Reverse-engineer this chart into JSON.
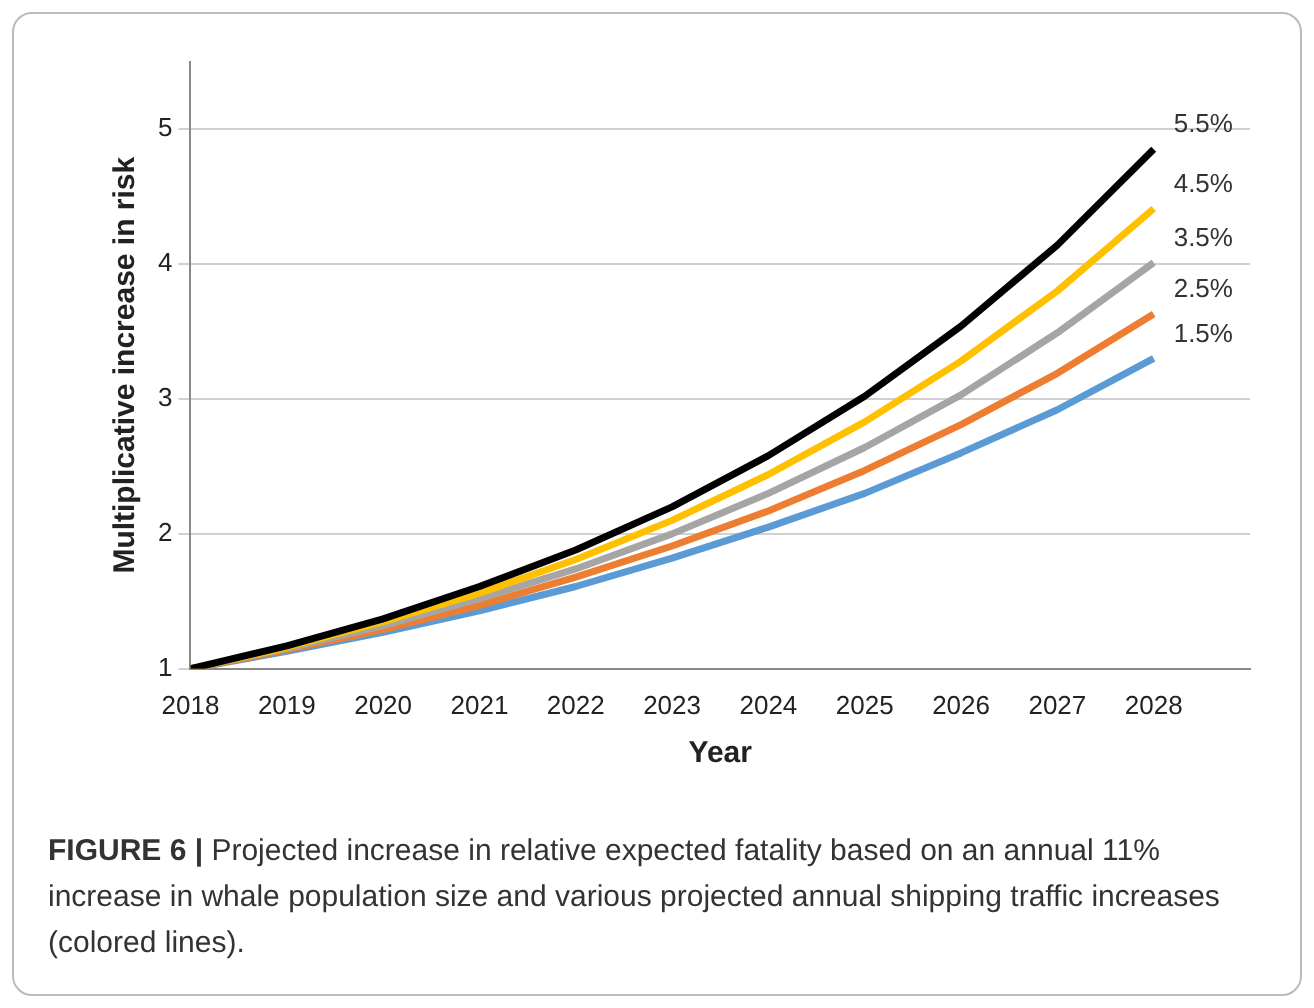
{
  "chart_data": {
    "type": "line",
    "xlabel": "Year",
    "ylabel": "Multiplicative increase in risk",
    "x": [
      2018,
      2019,
      2020,
      2021,
      2022,
      2023,
      2024,
      2025,
      2026,
      2027,
      2028
    ],
    "series": [
      {
        "name": "5.5%",
        "color": "#000000",
        "values": [
          1,
          1.17,
          1.37,
          1.61,
          1.88,
          2.2,
          2.58,
          3.02,
          3.54,
          4.14,
          4.85
        ]
      },
      {
        "name": "4.5%",
        "color": "#ffc000",
        "values": [
          1,
          1.16,
          1.35,
          1.56,
          1.81,
          2.1,
          2.44,
          2.83,
          3.28,
          3.8,
          4.41
        ]
      },
      {
        "name": "3.5%",
        "color": "#a5a5a5",
        "values": [
          1,
          1.15,
          1.32,
          1.52,
          1.74,
          2,
          2.3,
          2.64,
          3.03,
          3.49,
          4.01
        ]
      },
      {
        "name": "2.5%",
        "color": "#ed7d31",
        "values": [
          1,
          1.14,
          1.29,
          1.47,
          1.68,
          1.91,
          2.17,
          2.47,
          2.81,
          3.19,
          3.63
        ]
      },
      {
        "name": "1.5%",
        "color": "#5b9bd5",
        "values": [
          1,
          1.13,
          1.27,
          1.43,
          1.61,
          1.82,
          2.05,
          2.3,
          2.6,
          2.92,
          3.3
        ]
      }
    ],
    "xlim": [
      2018,
      2029
    ],
    "xticks": [
      2018,
      2019,
      2020,
      2021,
      2022,
      2023,
      2024,
      2025,
      2026,
      2027,
      2028
    ],
    "ylim": [
      1,
      5.5
    ],
    "yticks": [
      1,
      2,
      3,
      4,
      5
    ],
    "grid": "y",
    "legend": false,
    "marker": "none",
    "line_style": "solid",
    "annotations": [
      "FIGURE 6 | Projected increase in relative expected fatality based on an annual 11% increase in whale population size and various projected annual shipping traffic increases (colored lines)."
    ]
  }
}
